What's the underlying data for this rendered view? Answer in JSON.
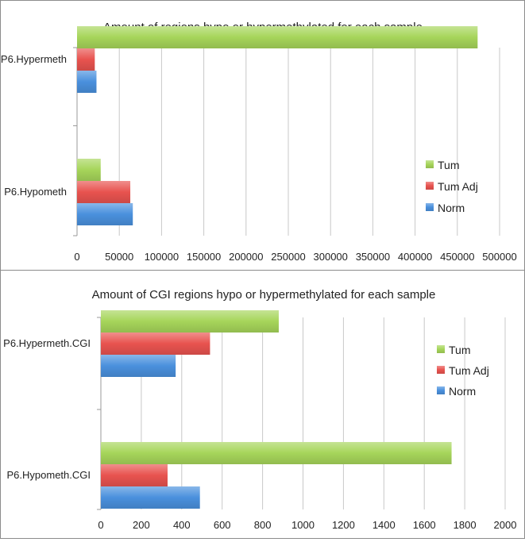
{
  "chart_data": [
    {
      "type": "bar",
      "orientation": "horizontal",
      "title": "Amount of regions hypo or hypermethylated for each sample",
      "categories": [
        "P6.Hypermeth",
        "P6.Hypometh"
      ],
      "series": [
        {
          "name": "Tum",
          "color": "#a6d55a",
          "values": [
            474000,
            28000
          ]
        },
        {
          "name": "Tum Adj",
          "color": "#e8534f",
          "values": [
            21000,
            63000
          ]
        },
        {
          "name": "Norm",
          "color": "#4a90dd",
          "values": [
            23000,
            66000
          ]
        }
      ],
      "xlim": [
        0,
        500000
      ],
      "xticks": [
        "0",
        "50000",
        "100000",
        "150000",
        "200000",
        "250000",
        "300000",
        "350000",
        "400000",
        "450000",
        "500000"
      ],
      "grid": true,
      "legend": "right"
    },
    {
      "type": "bar",
      "orientation": "horizontal",
      "title": "Amount of CGI regions hypo or hypermethylated for each sample",
      "categories": [
        "P6.Hypermeth.CGI",
        "P6.Hypometh.CGI"
      ],
      "series": [
        {
          "name": "Tum",
          "color": "#a6d55a",
          "values": [
            880,
            1735
          ]
        },
        {
          "name": "Tum Adj",
          "color": "#e8534f",
          "values": [
            540,
            330
          ]
        },
        {
          "name": "Norm",
          "color": "#4a90dd",
          "values": [
            370,
            490
          ]
        }
      ],
      "xlim": [
        0,
        2000
      ],
      "xticks": [
        "0",
        "200",
        "400",
        "600",
        "800",
        "1000",
        "1200",
        "1400",
        "1600",
        "1800",
        "2000"
      ],
      "grid": true,
      "legend": "right"
    }
  ]
}
